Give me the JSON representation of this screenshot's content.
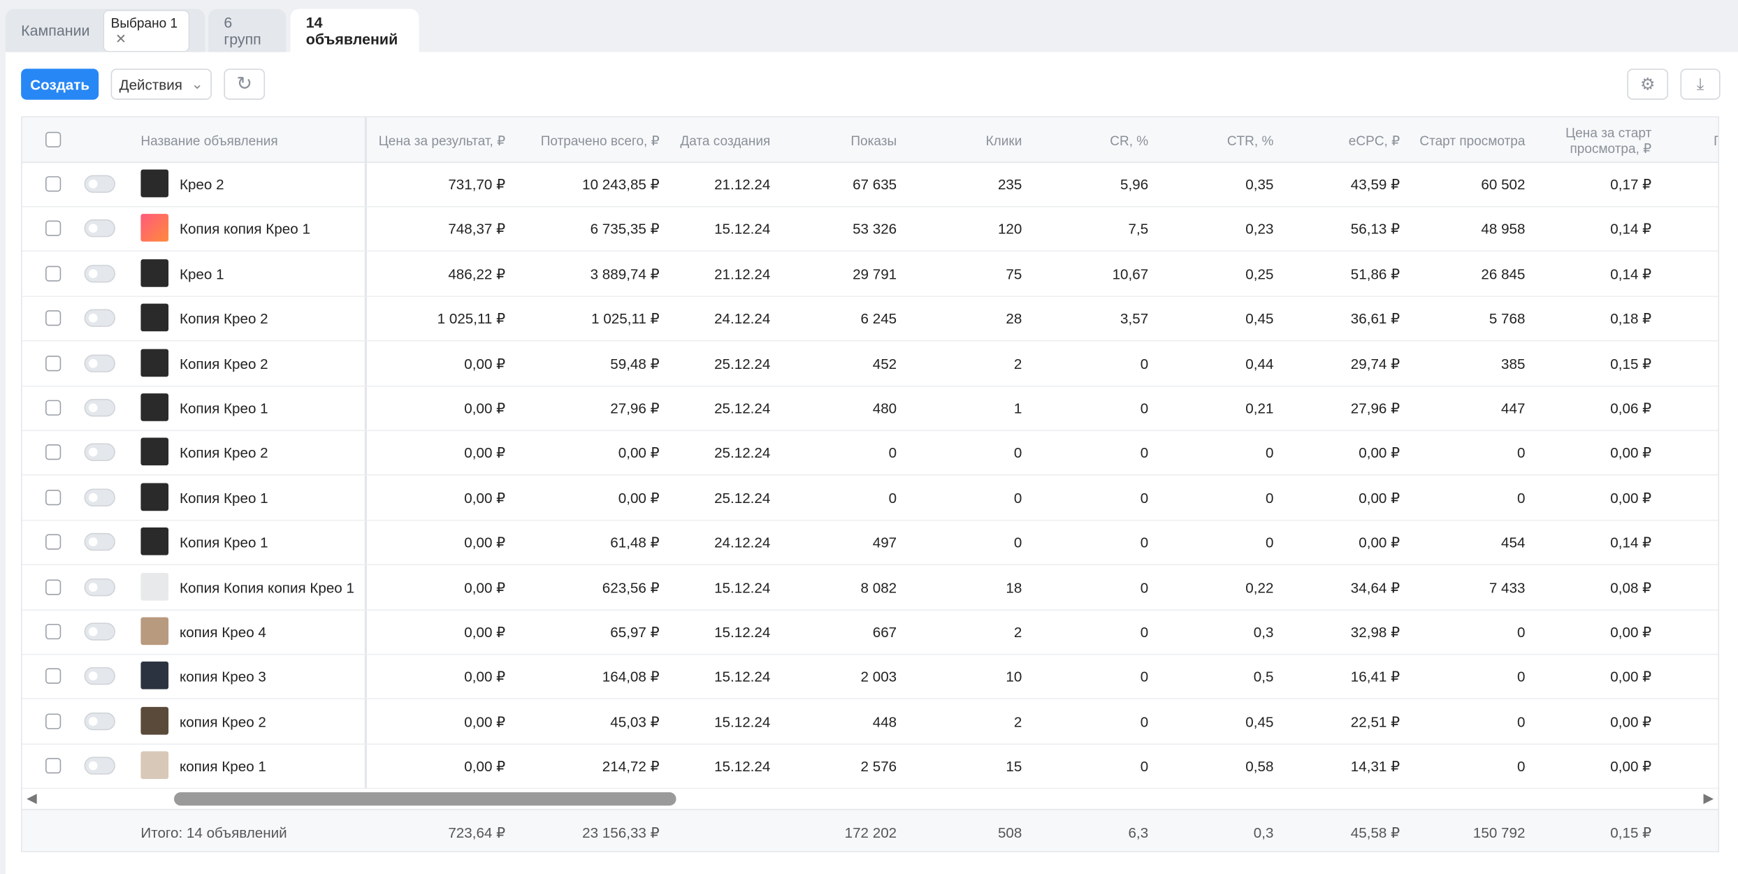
{
  "tabs": [
    {
      "label": "Кампании",
      "chip": "Выбрано 1"
    },
    {
      "label": "6 групп"
    },
    {
      "label": "14 объявлений"
    }
  ],
  "toolbar": {
    "create": "Создать",
    "actions": "Действия"
  },
  "table": {
    "headers": [
      "Название объявления",
      "Цена за результат, ₽",
      "Потрачено всего, ₽",
      "Дата создания",
      "Показы",
      "Клики",
      "CR, %",
      "CTR, %",
      "eCPC, ₽",
      "Старт просмотра",
      "Цена за старт просмотра, ₽",
      "П"
    ],
    "rows": [
      [
        "Крео 2",
        "731,70 ₽",
        "10 243,85 ₽",
        "21.12.24",
        "67 635",
        "235",
        "5,96",
        "0,35",
        "43,59 ₽",
        "60 502",
        "0,17 ₽"
      ],
      [
        "Копия копия Крео 1",
        "748,37 ₽",
        "6 735,35 ₽",
        "15.12.24",
        "53 326",
        "120",
        "7,5",
        "0,23",
        "56,13 ₽",
        "48 958",
        "0,14 ₽"
      ],
      [
        "Крео 1",
        "486,22 ₽",
        "3 889,74 ₽",
        "21.12.24",
        "29 791",
        "75",
        "10,67",
        "0,25",
        "51,86 ₽",
        "26 845",
        "0,14 ₽"
      ],
      [
        "Копия Крео 2",
        "1 025,11 ₽",
        "1 025,11 ₽",
        "24.12.24",
        "6 245",
        "28",
        "3,57",
        "0,45",
        "36,61 ₽",
        "5 768",
        "0,18 ₽"
      ],
      [
        "Копия Крео 2",
        "0,00 ₽",
        "59,48 ₽",
        "25.12.24",
        "452",
        "2",
        "0",
        "0,44",
        "29,74 ₽",
        "385",
        "0,15 ₽"
      ],
      [
        "Копия Крео 1",
        "0,00 ₽",
        "27,96 ₽",
        "25.12.24",
        "480",
        "1",
        "0",
        "0,21",
        "27,96 ₽",
        "447",
        "0,06 ₽"
      ],
      [
        "Копия Крео 2",
        "0,00 ₽",
        "0,00 ₽",
        "25.12.24",
        "0",
        "0",
        "0",
        "0",
        "0,00 ₽",
        "0",
        "0,00 ₽"
      ],
      [
        "Копия Крео 1",
        "0,00 ₽",
        "0,00 ₽",
        "25.12.24",
        "0",
        "0",
        "0",
        "0",
        "0,00 ₽",
        "0",
        "0,00 ₽"
      ],
      [
        "Копия Крео 1",
        "0,00 ₽",
        "61,48 ₽",
        "24.12.24",
        "497",
        "0",
        "0",
        "0",
        "0,00 ₽",
        "454",
        "0,14 ₽"
      ],
      [
        "Копия Копия копия Крео 1",
        "0,00 ₽",
        "623,56 ₽",
        "15.12.24",
        "8 082",
        "18",
        "0",
        "0,22",
        "34,64 ₽",
        "7 433",
        "0,08 ₽"
      ],
      [
        "копия Крео 4",
        "0,00 ₽",
        "65,97 ₽",
        "15.12.24",
        "667",
        "2",
        "0",
        "0,3",
        "32,98 ₽",
        "0",
        "0,00 ₽"
      ],
      [
        "копия Крео 3",
        "0,00 ₽",
        "164,08 ₽",
        "15.12.24",
        "2 003",
        "10",
        "0",
        "0,5",
        "16,41 ₽",
        "0",
        "0,00 ₽"
      ],
      [
        "копия Крео 2",
        "0,00 ₽",
        "45,03 ₽",
        "15.12.24",
        "448",
        "2",
        "0",
        "0,45",
        "22,51 ₽",
        "0",
        "0,00 ₽"
      ],
      [
        "копия Крео 1",
        "0,00 ₽",
        "214,72 ₽",
        "15.12.24",
        "2 576",
        "15",
        "0",
        "0,58",
        "14,31 ₽",
        "0",
        "0,00 ₽"
      ]
    ],
    "total": {
      "label": "Итого: 14 объявлений",
      "values": [
        "723,64 ₽",
        "23 156,33 ₽",
        null,
        "172 202",
        "508",
        "6,3",
        "0,3",
        "45,58 ₽",
        "150 792",
        "0,15 ₽"
      ]
    }
  }
}
